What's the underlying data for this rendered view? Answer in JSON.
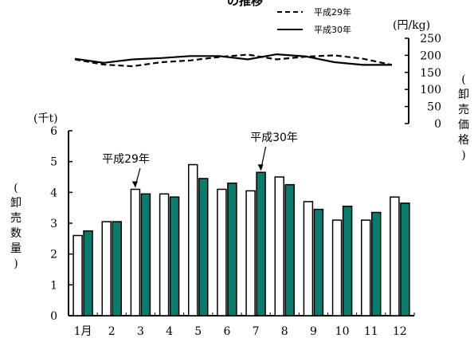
{
  "title_fragment": "の推移",
  "chart_data": [
    {
      "type": "line",
      "title": "",
      "unit": "(円/kg)",
      "ylabel": [
        "(",
        "卸",
        "売",
        "価",
        "格",
        ")"
      ],
      "ylim": [
        0,
        250
      ],
      "yticks": [
        0,
        50,
        100,
        150,
        200,
        250
      ],
      "categories": [
        "1月",
        "2",
        "3",
        "4",
        "5",
        "6",
        "7",
        "8",
        "9",
        "10",
        "11",
        "12"
      ],
      "legend_position": "top-right",
      "series": [
        {
          "name": "平成29年",
          "style": "dashed",
          "values": [
            188,
            173,
            168,
            180,
            185,
            195,
            202,
            188,
            196,
            200,
            190,
            172
          ]
        },
        {
          "name": "平成30年",
          "style": "solid",
          "values": [
            190,
            178,
            188,
            192,
            198,
            198,
            188,
            203,
            197,
            180,
            172,
            172
          ]
        }
      ]
    },
    {
      "type": "bar",
      "title": "",
      "unit": "(千t)",
      "ylabel": [
        "(",
        "卸",
        "売",
        "数",
        "量",
        ")"
      ],
      "ylim": [
        0,
        6
      ],
      "yticks": [
        0,
        1,
        2,
        3,
        4,
        5,
        6
      ],
      "categories": [
        "1月",
        "2",
        "3",
        "4",
        "5",
        "6",
        "7",
        "8",
        "9",
        "10",
        "11",
        "12"
      ],
      "colors": {
        "h29": "#ffffff",
        "h30": "#0d7a6e",
        "stroke": "#000000"
      },
      "series": [
        {
          "name": "平成29年",
          "values": [
            2.6,
            3.05,
            4.1,
            3.95,
            4.9,
            4.1,
            4.05,
            4.5,
            3.7,
            3.1,
            3.1,
            3.85
          ]
        },
        {
          "name": "平成30年",
          "values": [
            2.75,
            3.05,
            3.95,
            3.85,
            4.45,
            4.3,
            4.65,
            4.25,
            3.45,
            3.55,
            3.35,
            3.65
          ]
        }
      ],
      "annotations": [
        {
          "text": "平成29年",
          "series": 0,
          "category": 2
        },
        {
          "text": "平成30年",
          "series": 1,
          "category": 6
        }
      ]
    }
  ]
}
